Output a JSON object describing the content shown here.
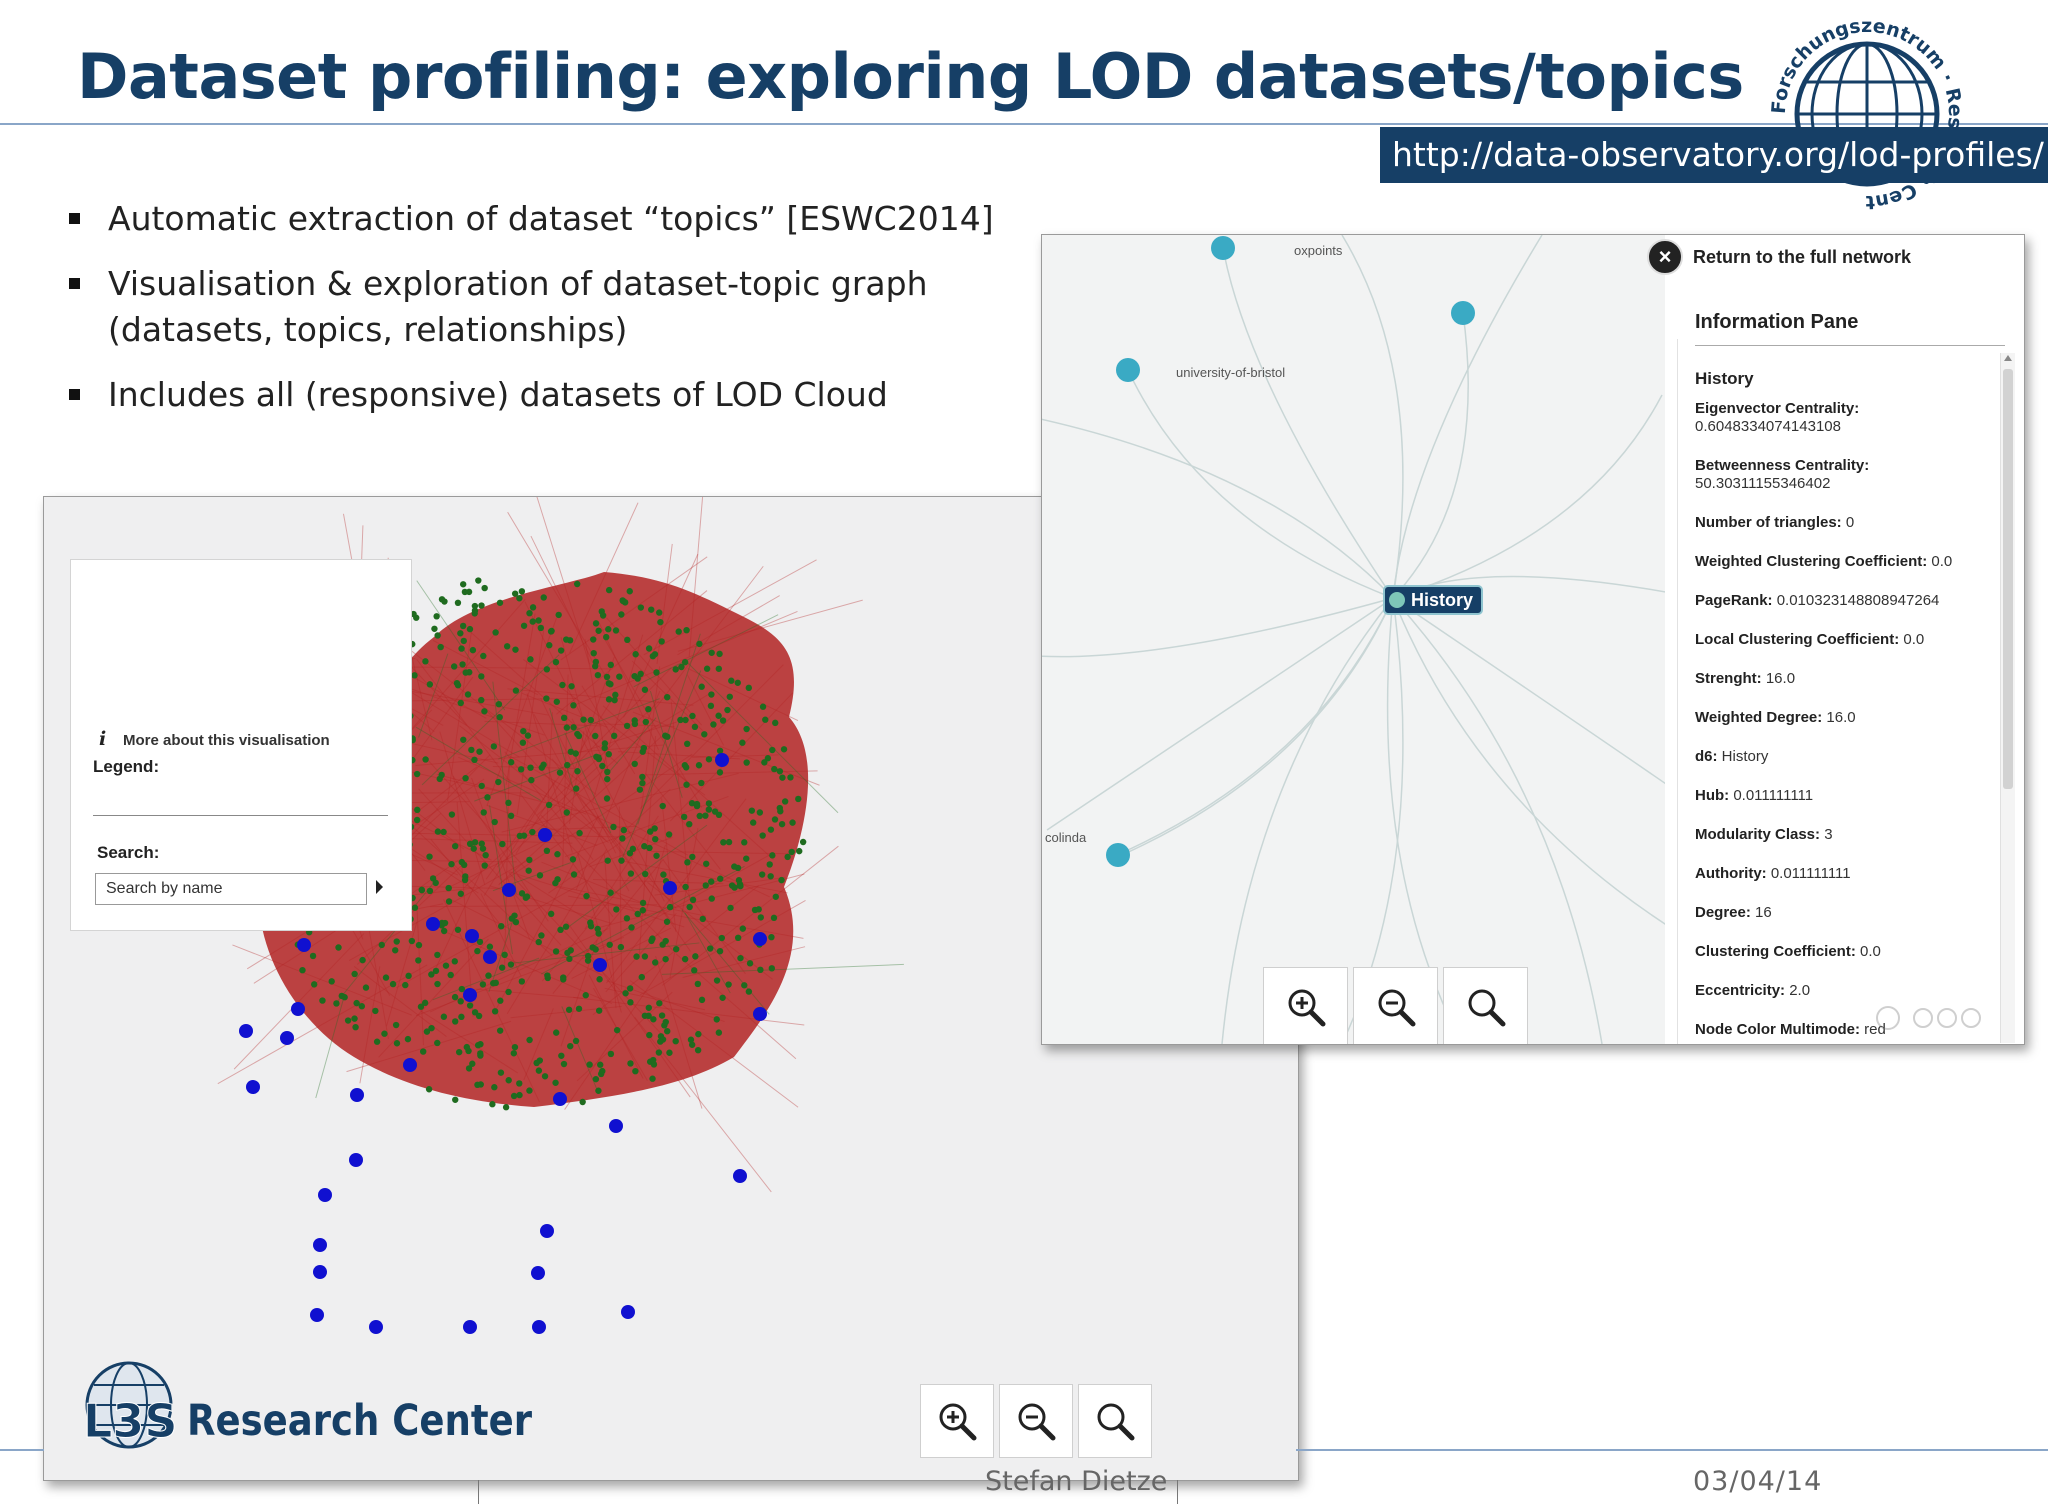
{
  "slide": {
    "title": "Dataset profiling: exploring LOD datasets/topics",
    "url": "http://data-observatory.org/lod-profiles/",
    "bullets": [
      "Automatic extraction of dataset “topics” [ESWC2014]",
      "Visualisation & exploration of dataset-topic graph (datasets, topics, relationships)",
      "Includes all (responsive) datasets of LOD Cloud"
    ],
    "footer_author": "Stefan Dietze",
    "footer_date": "03/04/14",
    "logo_ring_text": "Forschungszentrum · Research Center",
    "logo_brand_text": "L3S",
    "logo_research_center": "Research Center"
  },
  "left_panel": {
    "more_link": "More about this visualisation",
    "legend_label": "Legend:",
    "search_label": "Search:",
    "search_placeholder": "Search by name",
    "colors": {
      "links": "#b22222",
      "topic_nodes": "#1f6b1f",
      "dataset_nodes": "#1010d0"
    },
    "zoom_icons": [
      "zoom-in-icon",
      "zoom-out-icon",
      "zoom-reset-icon"
    ]
  },
  "right_panel": {
    "node_labels": {
      "oxpoints": "oxpoints",
      "bristol": "university-of-bristol",
      "colinda": "colinda"
    },
    "selected_node": "History",
    "return_link": "Return to the full network",
    "pane_title": "Information Pane",
    "pane_node_name": "History",
    "attributes": [
      {
        "key": "Eigenvector Centrality:",
        "value": "0.6048334074143108",
        "wrap": true
      },
      {
        "key": "Betweenness Centrality:",
        "value": "50.30311155346402",
        "wrap": true
      },
      {
        "key": "Number of triangles:",
        "value": "0",
        "wrap": false
      },
      {
        "key": "Weighted Clustering Coefficient:",
        "value": "0.0",
        "wrap": false
      },
      {
        "key": "PageRank:",
        "value": "0.010323148808947264",
        "wrap": false
      },
      {
        "key": "Local Clustering Coefficient:",
        "value": "0.0",
        "wrap": false
      },
      {
        "key": "Strenght:",
        "value": "16.0",
        "wrap": false
      },
      {
        "key": "Weighted Degree:",
        "value": "16.0",
        "wrap": false
      },
      {
        "key": "d6:",
        "value": "History",
        "wrap": false
      },
      {
        "key": "Hub:",
        "value": "0.011111111",
        "wrap": false
      },
      {
        "key": "Modularity Class:",
        "value": "3",
        "wrap": false
      },
      {
        "key": "Authority:",
        "value": "0.011111111",
        "wrap": false
      },
      {
        "key": "Degree:",
        "value": "16",
        "wrap": false
      },
      {
        "key": "Clustering Coefficient:",
        "value": "0.0",
        "wrap": false
      },
      {
        "key": "Eccentricity:",
        "value": "2.0",
        "wrap": false
      },
      {
        "key": "Node Color Multimode:",
        "value": "red",
        "wrap": false
      }
    ],
    "node_color": "#3aaac4"
  }
}
